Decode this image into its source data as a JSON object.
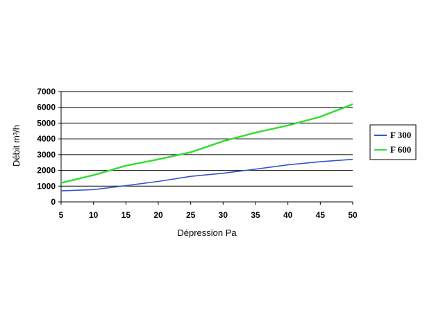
{
  "chart_data": {
    "type": "line",
    "xlabel": "Dépression Pa",
    "ylabel": "Débit m³/h",
    "x": [
      5,
      10,
      15,
      20,
      25,
      30,
      35,
      40,
      45,
      50
    ],
    "xlim": [
      5,
      50
    ],
    "ylim": [
      0,
      7000
    ],
    "yticks": [
      0,
      1000,
      2000,
      3000,
      4000,
      5000,
      6000,
      7000
    ],
    "grid": true,
    "legend_position": "right",
    "series": [
      {
        "name": "F 300",
        "color": "#3355cc",
        "values": [
          700,
          780,
          1030,
          1300,
          1620,
          1820,
          2080,
          2350,
          2550,
          2700
        ]
      },
      {
        "name": "F 600",
        "color": "#33dd33",
        "values": [
          1200,
          1700,
          2300,
          2700,
          3150,
          3850,
          4400,
          4850,
          5400,
          6200
        ]
      }
    ]
  }
}
